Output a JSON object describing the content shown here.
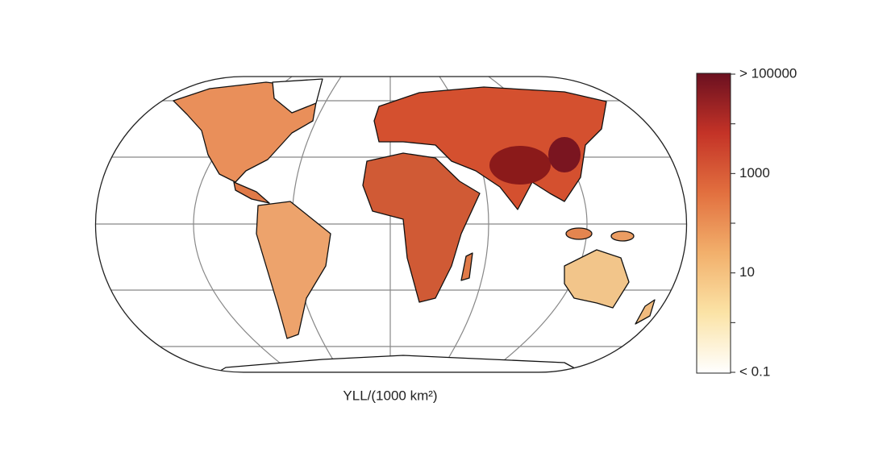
{
  "map": {
    "caption": "YLL/(1000 km²)",
    "colorbar": {
      "scale": "log",
      "range": [
        0.1,
        100000
      ],
      "colors": [
        "#ffffff",
        "#fbe3a6",
        "#f2b06c",
        "#e2703f",
        "#c43327",
        "#6b1020"
      ],
      "ticks": [
        {
          "value": 100000,
          "label": "> 100000"
        },
        1000,
        10,
        {
          "value": 0.1,
          "label": "< 0.1"
        }
      ],
      "minor_ticks": [
        10000,
        100,
        1
      ]
    }
  }
}
